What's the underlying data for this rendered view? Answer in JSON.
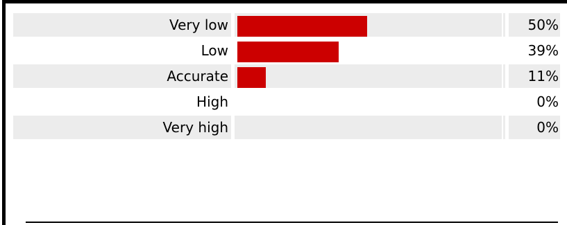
{
  "poll": {
    "rows": [
      {
        "label": "Very low",
        "percent": "50%",
        "fraction": 0.5
      },
      {
        "label": "Low",
        "percent": "39%",
        "fraction": 0.39
      },
      {
        "label": "Accurate",
        "percent": "11%",
        "fraction": 0.11
      },
      {
        "label": "High",
        "percent": "0%",
        "fraction": 0.0
      },
      {
        "label": "Very high",
        "percent": "0%",
        "fraction": 0.0
      }
    ]
  },
  "colors": {
    "bar_fill": "#cc0000",
    "row_shade": "#ececec",
    "frame": "#000000"
  }
}
